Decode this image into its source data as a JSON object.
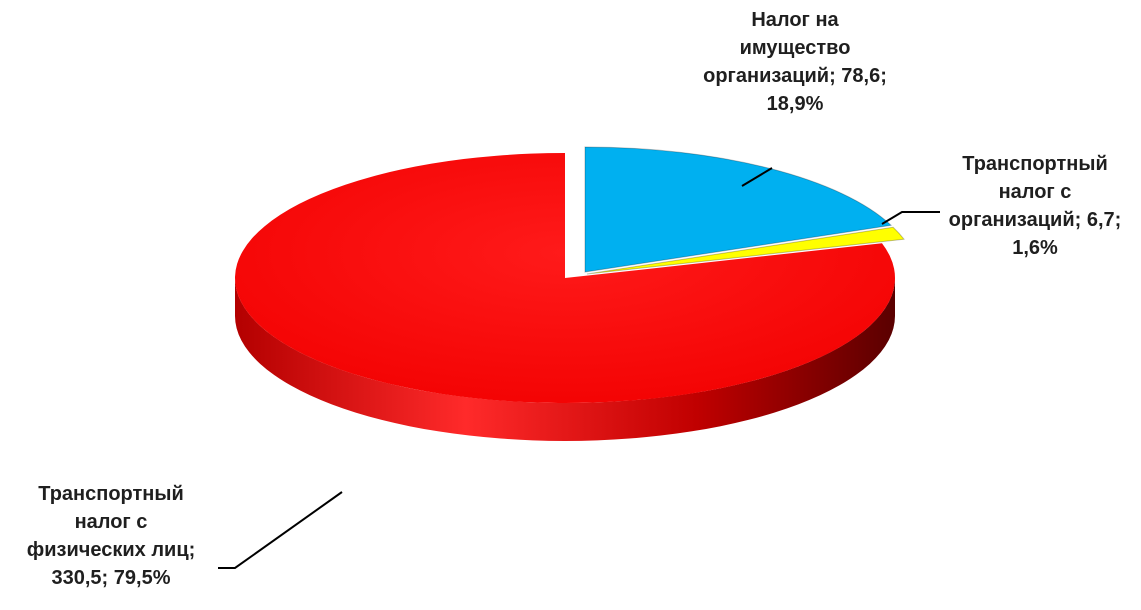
{
  "chart_data": {
    "type": "pie",
    "title": "",
    "slices": [
      {
        "category": "Налог на имущество организаций",
        "value": 78.6,
        "percent": "18,9%",
        "color": "#00b0f0",
        "label_lines": [
          "Налог на",
          "имущество",
          "организаций; 78,6;",
          "18,9%"
        ]
      },
      {
        "category": "Транспортный налог с организаций",
        "value": 6.7,
        "percent": "1,6%",
        "color": "#ffff00",
        "label_lines": [
          "Транспортный",
          "налог с",
          "организаций; 6,7;",
          "1,6%"
        ]
      },
      {
        "category": "Транспортный налог с физических лиц",
        "value": 330.5,
        "percent": "79,5%",
        "color": "#ff0000",
        "label_lines": [
          "Транспортный",
          "налог с",
          "физических лиц;",
          "330,5; 79,5%"
        ]
      }
    ],
    "legend": "none",
    "style": "3d-exploded"
  }
}
